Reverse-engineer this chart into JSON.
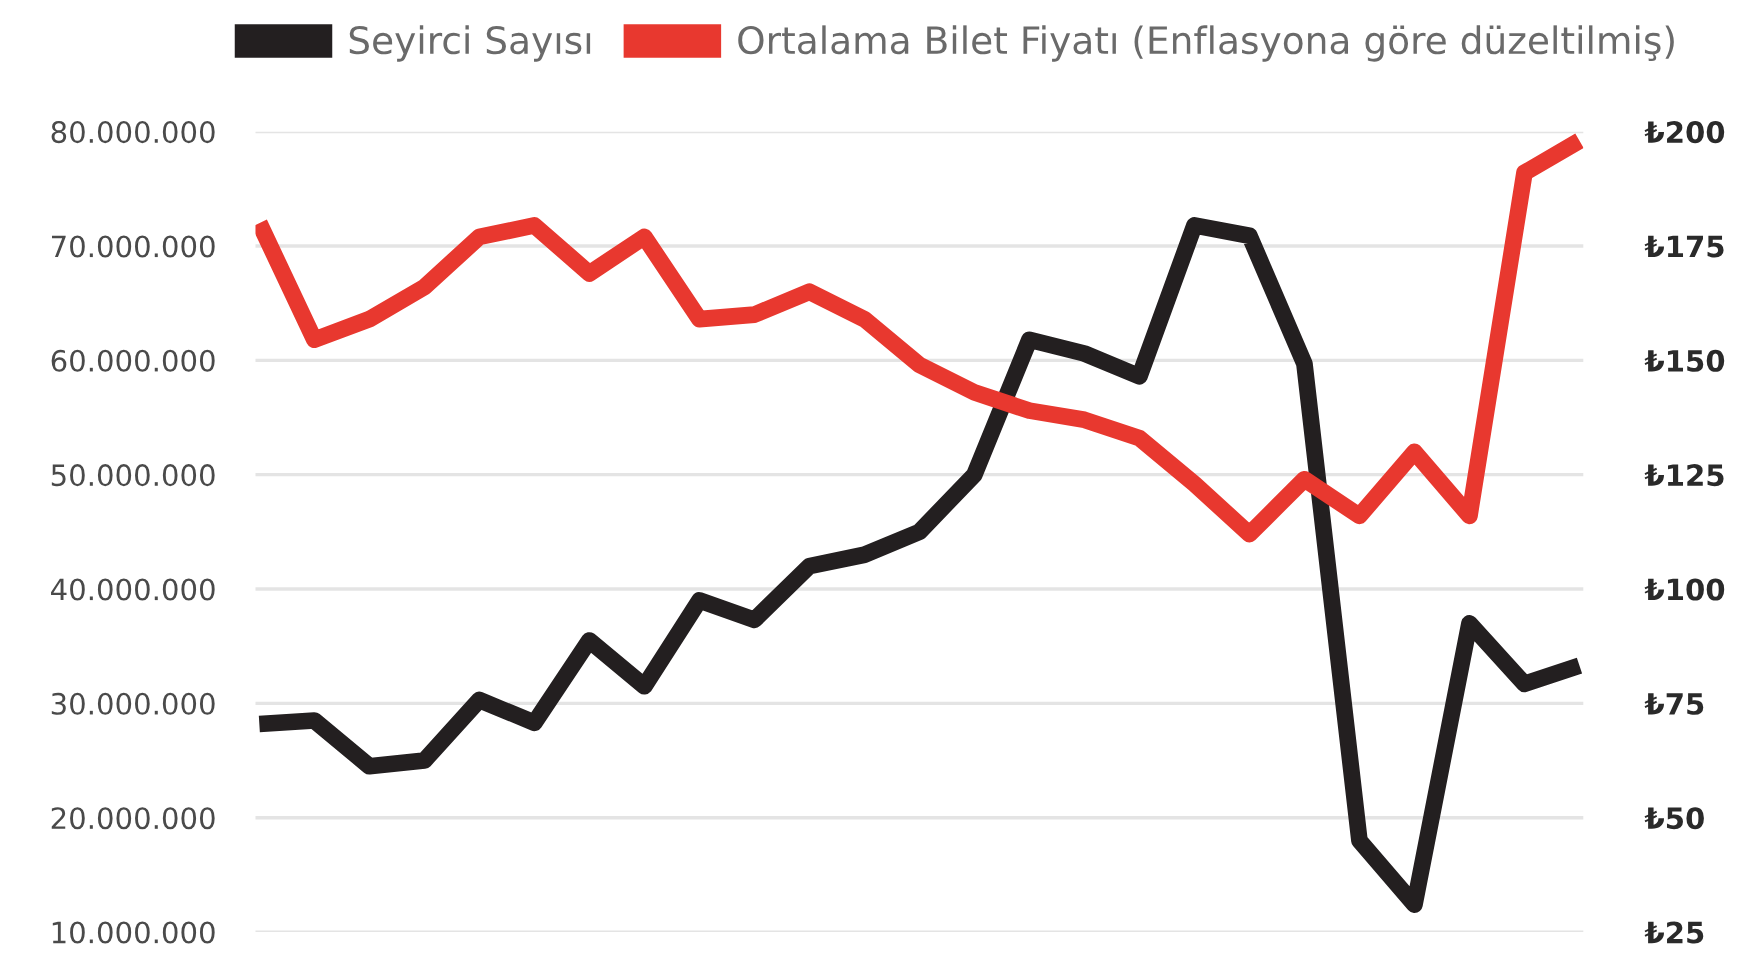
{
  "chart_data": {
    "type": "line",
    "categories": [
      null,
      null,
      null,
      null,
      null,
      null,
      null,
      null,
      null,
      null,
      null,
      null,
      null,
      null,
      null,
      null,
      null,
      null,
      null,
      null,
      null,
      null,
      null,
      null,
      null
    ],
    "series": [
      {
        "name": "Seyirci Sayısı",
        "color": "#231f20",
        "values": [
          28200000,
          28500000,
          24500000,
          25000000,
          30300000,
          28300000,
          35500000,
          31500000,
          39000000,
          37300000,
          42000000,
          43000000,
          45000000,
          50000000,
          61800000,
          60600000,
          58600000,
          71800000,
          70900000,
          59700000,
          18000000,
          12400000,
          37000000,
          31700000,
          33300000
        ]
      },
      {
        "name": "Ortalama Bilet Fiyatı (Enflasyona göre düzeltilmiş)",
        "color": "#e8382f",
        "axis": "y2",
        "values": [
          180,
          154.5,
          159,
          166,
          177,
          179.5,
          169,
          177,
          159,
          160,
          165,
          159,
          149,
          143,
          139,
          137,
          133,
          123,
          112,
          124,
          116,
          130,
          116,
          191,
          198
        ]
      }
    ],
    "ylim": [
      10000000,
      80000000
    ],
    "yticks": [
      {
        "value": 10000000,
        "label": "10.000.000"
      },
      {
        "value": 20000000,
        "label": "20.000.000"
      },
      {
        "value": 30000000,
        "label": "30.000.000"
      },
      {
        "value": 40000000,
        "label": "40.000.000"
      },
      {
        "value": 50000000,
        "label": "50.000.000"
      },
      {
        "value": 60000000,
        "label": "60.000.000"
      },
      {
        "value": 70000000,
        "label": "70.000.000"
      },
      {
        "value": 80000000,
        "label": "80.000.000"
      }
    ],
    "y2lim": [
      25,
      200
    ],
    "y2ticks": [
      {
        "value": 25,
        "label": "₺25"
      },
      {
        "value": 50,
        "label": "₺50"
      },
      {
        "value": 75,
        "label": "₺75"
      },
      {
        "value": 100,
        "label": "₺100"
      },
      {
        "value": 125,
        "label": "₺125"
      },
      {
        "value": 150,
        "label": "₺150"
      },
      {
        "value": 175,
        "label": "₺175"
      },
      {
        "value": 200,
        "label": "₺200"
      }
    ],
    "grid": "y",
    "legend": "top",
    "marker": "none",
    "line_style": "solid"
  }
}
